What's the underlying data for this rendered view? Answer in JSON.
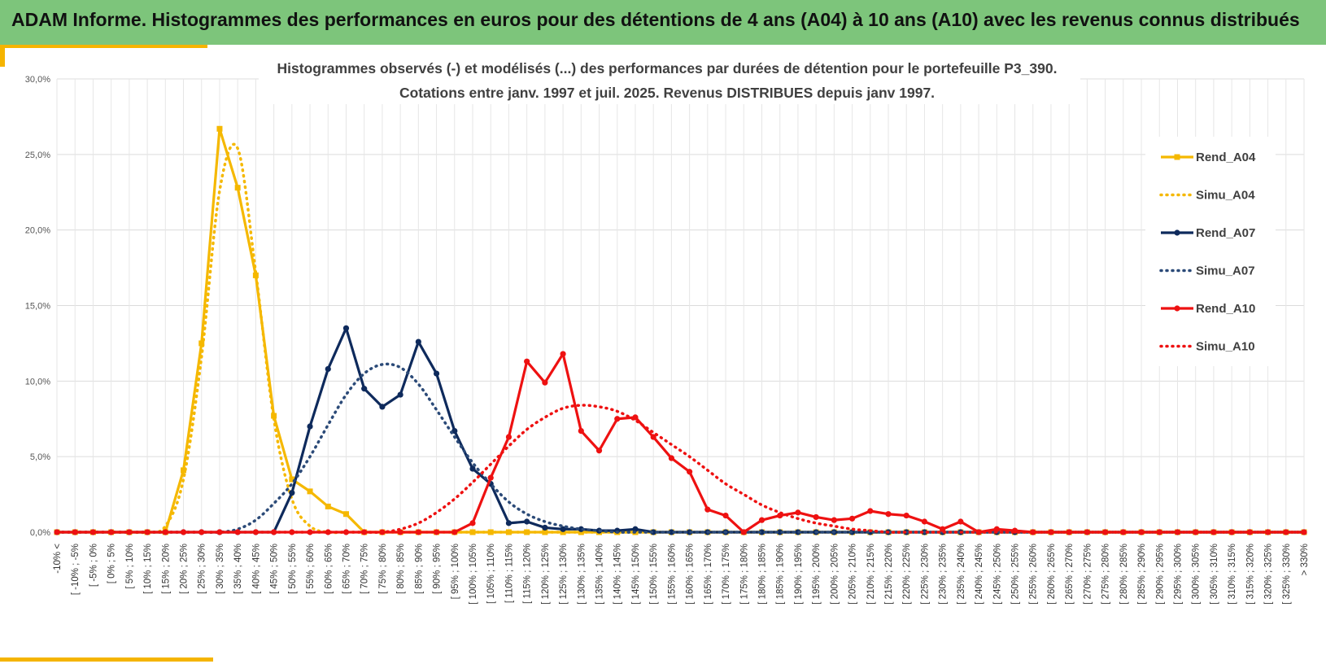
{
  "banner": {
    "title": "ADAM Informe. Histogrammes des performances en euros pour des détentions de 4 ans (A04) à 10 ans (A10) avec les revenus connus distribués"
  },
  "colors": {
    "banner_bg": "#7dc57b",
    "accent": "#f5b400",
    "a04": "#f5b800",
    "a07": "#0e2a5c",
    "a07_simu": "#2b4a78",
    "a10": "#ee1111"
  },
  "chart_data": {
    "type": "line",
    "title": [
      "Histogrammes observés (-) et modélisés (...) des performances par durées de détention pour le portefeuille P3_390.",
      "Cotations entre janv. 1997 et juil. 2025. Revenus DISTRIBUES depuis janv 1997."
    ],
    "xlabel": "",
    "ylabel": "",
    "ylim": [
      0,
      30
    ],
    "yticks": [
      "0,0%",
      "5,0%",
      "10,0%",
      "15,0%",
      "20,0%",
      "25,0%",
      "30,0%"
    ],
    "grid": true,
    "legend_position": "right",
    "categories": [
      "-10% <",
      "[ -10% ; -5%",
      "[ -5% ; 0%",
      "[ 0% ; 5%",
      "[ 5% ; 10%",
      "[ 10% ; 15%",
      "[ 15% ; 20%",
      "[ 20% ; 25%",
      "[ 25% ; 30%",
      "[ 30% ; 35%",
      "[ 35% ; 40%",
      "[ 40% ; 45%",
      "[ 45% ; 50%",
      "[ 50% ; 55%",
      "[ 55% ; 60%",
      "[ 60% ; 65%",
      "[ 65% ; 70%",
      "[ 70% ; 75%",
      "[ 75% ; 80%",
      "[ 80% ; 85%",
      "[ 85% ; 90%",
      "[ 90% ; 95%",
      "[ 95% ; 100%",
      "[ 100% ; 105%",
      "[ 105% ; 110%",
      "[ 110% ; 115%",
      "[ 115% ; 120%",
      "[ 120% ; 125%",
      "[ 125% ; 130%",
      "[ 130% ; 135%",
      "[ 135% ; 140%",
      "[ 140% ; 145%",
      "[ 145% ; 150%",
      "[ 150% ; 155%",
      "[ 155% ; 160%",
      "[ 160% ; 165%",
      "[ 165% ; 170%",
      "[ 170% ; 175%",
      "[ 175% ; 180%",
      "[ 180% ; 185%",
      "[ 185% ; 190%",
      "[ 190% ; 195%",
      "[ 195% ; 200%",
      "[ 200% ; 205%",
      "[ 205% ; 210%",
      "[ 210% ; 215%",
      "[ 215% ; 220%",
      "[ 220% ; 225%",
      "[ 225% ; 230%",
      "[ 230% ; 235%",
      "[ 235% ; 240%",
      "[ 240% ; 245%",
      "[ 245% ; 250%",
      "[ 250% ; 255%",
      "[ 255% ; 260%",
      "[ 260% ; 265%",
      "[ 265% ; 270%",
      "[ 270% ; 275%",
      "[ 275% ; 280%",
      "[ 280% ; 285%",
      "[ 285% ; 290%",
      "[ 290% ; 295%",
      "[ 295% ; 300%",
      "[ 300% ; 305%",
      "[ 305% ; 310%",
      "[ 310% ; 315%",
      "[ 315% ; 320%",
      "[ 320% ; 325%",
      "[ 325% ; 330%",
      "> 330%"
    ],
    "series": [
      {
        "name": "Rend_A04",
        "style": "solid",
        "marker": "square",
        "color": "#f5b800",
        "values": [
          0,
          0,
          0,
          0,
          0,
          0,
          0,
          4.1,
          12.5,
          26.7,
          22.8,
          17.0,
          7.7,
          3.5,
          2.7,
          1.7,
          1.2,
          0,
          0,
          0,
          0,
          0,
          0,
          0,
          0,
          0,
          0,
          0,
          0,
          0,
          0,
          0,
          0,
          0,
          0,
          0,
          0,
          0,
          0,
          0,
          0,
          0,
          0,
          0,
          0,
          0,
          0,
          0,
          0,
          0,
          0,
          0,
          0,
          0,
          0,
          0,
          0,
          0,
          0,
          0,
          0,
          0,
          0,
          0,
          0,
          0,
          0,
          0,
          0,
          0
        ]
      },
      {
        "name": "Simu_A04",
        "style": "dotted",
        "marker": "none",
        "color": "#f5b800",
        "values": [
          0,
          0,
          0,
          0,
          0,
          0,
          0.4,
          3.5,
          11.6,
          22.6,
          25.4,
          17.2,
          7.5,
          2.2,
          0.4,
          0,
          0,
          0,
          0,
          0,
          0,
          0,
          0,
          0,
          0,
          0,
          0,
          0,
          0,
          0,
          0,
          0,
          0,
          0,
          0,
          0,
          0,
          0,
          0,
          0,
          0,
          0,
          0,
          0,
          0,
          0,
          0,
          0,
          0,
          0,
          0,
          0,
          0,
          0,
          0,
          0,
          0,
          0,
          0,
          0,
          0,
          0,
          0,
          0,
          0,
          0,
          0,
          0,
          0,
          0
        ]
      },
      {
        "name": "Rend_A07",
        "style": "solid",
        "marker": "circle",
        "color": "#0e2a5c",
        "values": [
          0,
          0,
          0,
          0,
          0,
          0,
          0,
          0,
          0,
          0,
          0,
          0,
          0,
          2.6,
          7.0,
          10.8,
          13.5,
          9.5,
          8.3,
          9.1,
          12.6,
          10.5,
          6.7,
          4.2,
          3.2,
          0.6,
          0.7,
          0.3,
          0.2,
          0.2,
          0.1,
          0.1,
          0.2,
          0,
          0,
          0,
          0,
          0,
          0,
          0,
          0,
          0,
          0,
          0,
          0,
          0,
          0,
          0,
          0,
          0,
          0,
          0,
          0,
          0,
          0,
          0,
          0,
          0,
          0,
          0,
          0,
          0,
          0,
          0,
          0,
          0,
          0,
          0,
          0,
          0
        ]
      },
      {
        "name": "Simu_A07",
        "style": "dotted",
        "marker": "none",
        "color": "#2b4a78",
        "values": [
          0,
          0,
          0,
          0,
          0,
          0,
          0,
          0,
          0,
          0,
          0.2,
          0.8,
          1.9,
          3.2,
          5.0,
          7.1,
          9.1,
          10.5,
          11.1,
          10.9,
          9.8,
          8.1,
          6.3,
          4.6,
          3.2,
          2.0,
          1.2,
          0.7,
          0.4,
          0.2,
          0.1,
          0,
          0,
          0,
          0,
          0,
          0,
          0,
          0,
          0,
          0,
          0,
          0,
          0,
          0,
          0,
          0,
          0,
          0,
          0,
          0,
          0,
          0,
          0,
          0,
          0,
          0,
          0,
          0,
          0,
          0,
          0,
          0,
          0,
          0,
          0,
          0,
          0,
          0,
          0
        ]
      },
      {
        "name": "Rend_A10",
        "style": "solid",
        "marker": "circle",
        "color": "#ee1111",
        "values": [
          0,
          0,
          0,
          0,
          0,
          0,
          0,
          0,
          0,
          0,
          0,
          0,
          0,
          0,
          0,
          0,
          0,
          0,
          0,
          0,
          0,
          0,
          0,
          0.6,
          3.6,
          6.3,
          11.3,
          9.9,
          11.8,
          6.7,
          5.4,
          7.5,
          7.6,
          6.3,
          4.9,
          4.0,
          1.5,
          1.1,
          0,
          0.8,
          1.1,
          1.3,
          1.0,
          0.8,
          0.9,
          1.4,
          1.2,
          1.1,
          0.7,
          0.2,
          0.7,
          0,
          0.2,
          0.1,
          0,
          0,
          0,
          0,
          0,
          0,
          0,
          0,
          0,
          0,
          0,
          0,
          0,
          0,
          0,
          0
        ]
      },
      {
        "name": "Simu_A10",
        "style": "dotted",
        "marker": "none",
        "color": "#ee1111",
        "values": [
          0,
          0,
          0,
          0,
          0,
          0,
          0,
          0,
          0,
          0,
          0,
          0,
          0,
          0,
          0,
          0,
          0,
          0,
          0,
          0.2,
          0.6,
          1.3,
          2.2,
          3.3,
          4.5,
          5.7,
          6.8,
          7.6,
          8.2,
          8.4,
          8.3,
          8.0,
          7.4,
          6.6,
          5.8,
          5.0,
          4.1,
          3.2,
          2.5,
          1.8,
          1.3,
          0.9,
          0.6,
          0.4,
          0.2,
          0.1,
          0,
          0,
          0,
          0,
          0,
          0,
          0,
          0,
          0,
          0,
          0,
          0,
          0,
          0,
          0,
          0,
          0,
          0,
          0,
          0,
          0,
          0,
          0,
          0
        ]
      }
    ]
  }
}
